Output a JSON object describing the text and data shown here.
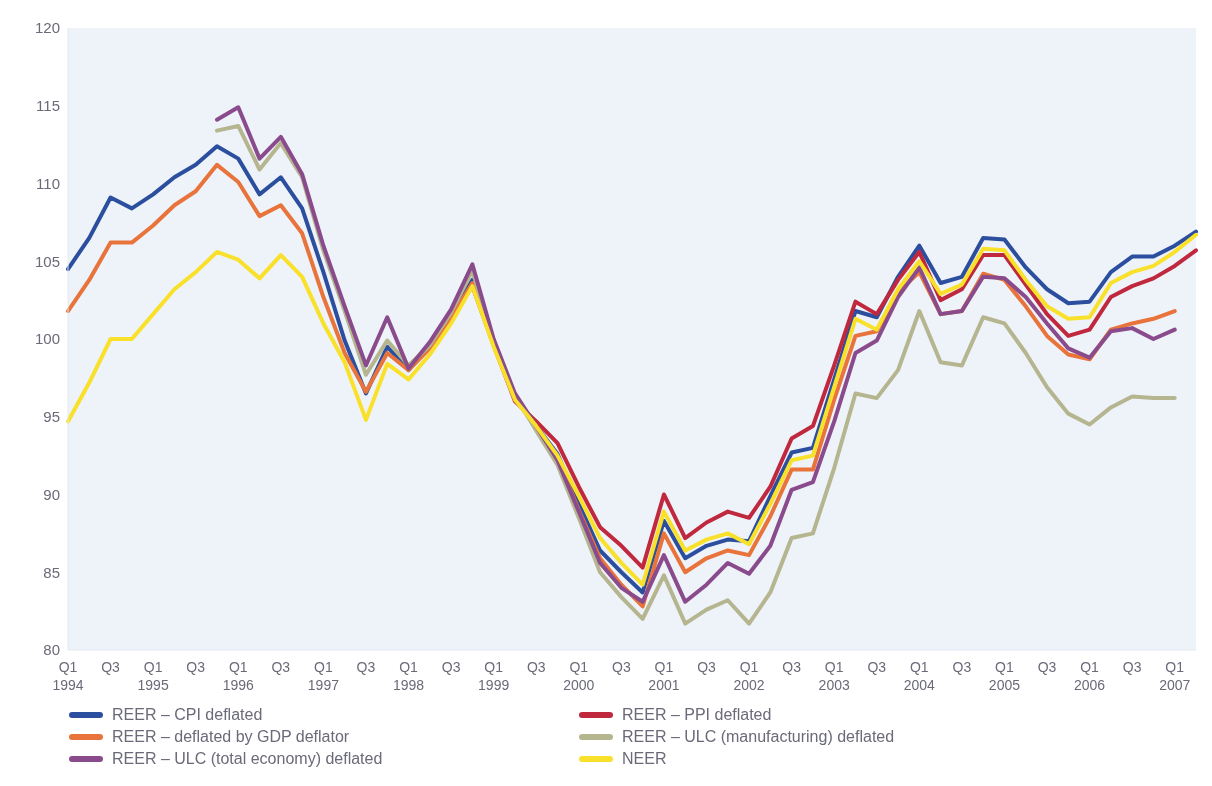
{
  "chart_data": {
    "type": "line",
    "categories": [
      "Q1 1994",
      null,
      "Q3",
      null,
      "Q1 1995",
      null,
      "Q3",
      null,
      "Q1 1996",
      null,
      "Q3",
      null,
      "Q1 1997",
      null,
      "Q3",
      null,
      "Q1 1998",
      null,
      "Q3",
      null,
      "Q1 1999",
      null,
      "Q3",
      null,
      "Q1 2000",
      null,
      "Q3",
      null,
      "Q1 2001",
      null,
      "Q3",
      null,
      "Q1 2002",
      null,
      "Q3",
      null,
      "Q1 2003",
      null,
      "Q3",
      null,
      "Q1 2004",
      null,
      "Q3",
      null,
      "Q1 2005",
      null,
      "Q3",
      null,
      "Q1 2006",
      null,
      "Q3",
      null,
      "Q1 2007",
      null
    ],
    "series": [
      {
        "name": "REER – CPI deflated",
        "color": "#2b4f9e",
        "values": [
          104.5,
          106.5,
          109.1,
          108.4,
          109.3,
          110.4,
          111.2,
          112.4,
          111.6,
          109.3,
          110.4,
          108.4,
          104.3,
          99.9,
          96.5,
          99.5,
          98.0,
          99.5,
          101.5,
          103.8,
          99.7,
          96.2,
          94.4,
          92.6,
          89.4,
          86.4,
          85.0,
          83.7,
          88.3,
          85.9,
          86.7,
          87.1,
          87.0,
          89.9,
          92.7,
          93.0,
          97.4,
          101.8,
          101.4,
          104.0,
          106.0,
          103.6,
          104.0,
          106.5,
          106.4,
          104.6,
          103.2,
          102.3,
          102.4,
          104.3,
          105.3,
          105.3,
          106.0,
          106.9
        ]
      },
      {
        "name": "REER – PPI deflated",
        "color": "#c0283e",
        "values": [
          null,
          null,
          null,
          null,
          null,
          null,
          null,
          null,
          null,
          null,
          null,
          null,
          null,
          null,
          null,
          null,
          98.2,
          99.6,
          101.4,
          103.4,
          99.6,
          96.0,
          94.7,
          93.3,
          90.5,
          87.9,
          86.7,
          85.3,
          90.0,
          87.2,
          88.2,
          88.9,
          88.5,
          90.5,
          93.6,
          94.4,
          98.3,
          102.4,
          101.6,
          103.8,
          105.6,
          102.5,
          103.2,
          105.4,
          105.4,
          103.5,
          101.6,
          100.2,
          100.6,
          102.7,
          103.4,
          103.9,
          104.7,
          105.7
        ]
      },
      {
        "name": "REER – deflated by GDP deflator",
        "color": "#e8743b",
        "values": [
          101.8,
          103.8,
          106.2,
          106.2,
          107.3,
          108.6,
          109.5,
          111.2,
          110.1,
          107.9,
          108.6,
          106.8,
          102.7,
          99.1,
          96.6,
          99.1,
          98.0,
          99.4,
          101.4,
          103.6,
          99.7,
          96.2,
          94.3,
          92.3,
          89.0,
          85.9,
          84.2,
          82.8,
          87.5,
          85.0,
          85.9,
          86.4,
          86.1,
          88.6,
          91.6,
          91.6,
          96.1,
          100.2,
          100.5,
          103.0,
          104.3,
          101.6,
          101.8,
          104.2,
          103.8,
          102.1,
          100.2,
          99.0,
          98.7,
          100.6,
          101.0,
          101.3,
          101.8,
          null
        ]
      },
      {
        "name": "REER – ULC (manufacturing) deflated",
        "color": "#b5b58f",
        "values": [
          null,
          null,
          null,
          null,
          null,
          null,
          null,
          113.4,
          113.7,
          110.9,
          112.6,
          110.4,
          105.7,
          101.8,
          97.7,
          99.9,
          98.3,
          99.6,
          101.7,
          104.4,
          99.8,
          96.4,
          94.1,
          91.9,
          88.5,
          85.0,
          83.4,
          82.0,
          84.8,
          81.7,
          82.6,
          83.2,
          81.7,
          83.7,
          87.2,
          87.5,
          91.7,
          96.5,
          96.2,
          98.0,
          101.8,
          98.5,
          98.3,
          101.4,
          101.0,
          99.1,
          96.9,
          95.2,
          94.5,
          95.6,
          96.3,
          96.2,
          96.2,
          null
        ]
      },
      {
        "name": "REER – ULC (total economy) deflated",
        "color": "#8a4b8c",
        "values": [
          null,
          null,
          null,
          null,
          null,
          null,
          null,
          114.1,
          114.9,
          111.6,
          113.0,
          110.6,
          106.0,
          102.1,
          98.3,
          101.4,
          98.1,
          99.8,
          101.9,
          104.8,
          100.0,
          96.5,
          94.4,
          92.2,
          88.9,
          85.6,
          84.0,
          83.1,
          86.1,
          83.1,
          84.2,
          85.6,
          84.9,
          86.7,
          90.3,
          90.8,
          94.7,
          99.1,
          99.9,
          102.7,
          104.6,
          101.6,
          101.8,
          104.0,
          103.9,
          102.7,
          101.0,
          99.4,
          98.8,
          100.5,
          100.7,
          100.0,
          100.6,
          null
        ]
      },
      {
        "name": "NEER",
        "color": "#f9e02a",
        "values": [
          94.7,
          97.2,
          100.0,
          100.0,
          101.6,
          103.2,
          104.3,
          105.6,
          105.1,
          103.9,
          105.4,
          104.0,
          101.0,
          98.5,
          94.8,
          98.4,
          97.4,
          99.0,
          101.0,
          103.4,
          99.5,
          96.1,
          94.4,
          92.5,
          89.9,
          87.2,
          85.6,
          84.2,
          88.9,
          86.4,
          87.1,
          87.5,
          86.8,
          89.4,
          92.2,
          92.5,
          96.9,
          101.3,
          100.6,
          103.2,
          105.0,
          102.9,
          103.5,
          105.8,
          105.7,
          103.8,
          102.1,
          101.3,
          101.4,
          103.6,
          104.3,
          104.7,
          105.6,
          106.7
        ]
      }
    ],
    "ylim": [
      80,
      120
    ],
    "yticks": [
      80,
      85,
      90,
      95,
      100,
      105,
      110,
      115,
      120
    ],
    "legend": "bottom"
  }
}
